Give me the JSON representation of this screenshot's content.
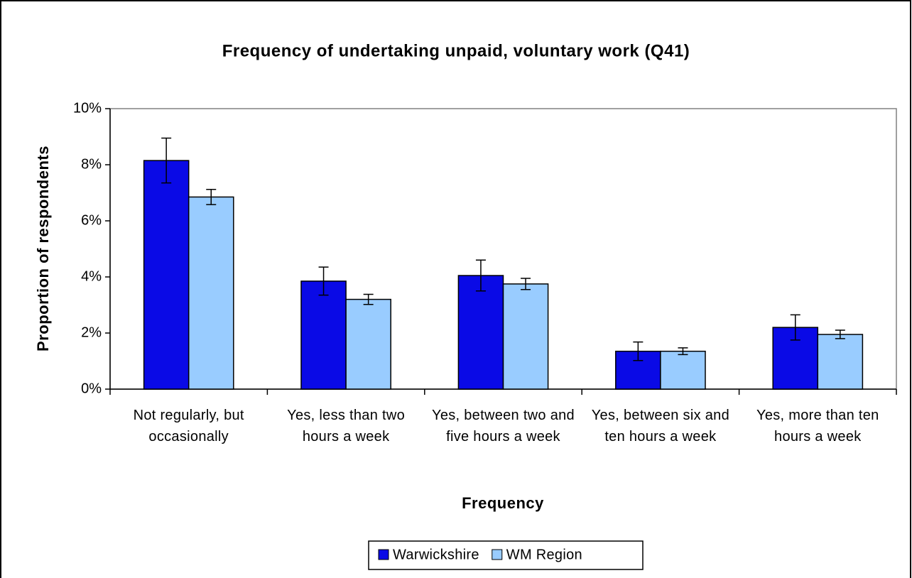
{
  "chart_data": {
    "type": "bar",
    "title": "Frequency of undertaking unpaid, voluntary work (Q41)",
    "x_label": "Frequency",
    "y_label": "Proportion of respondents",
    "categories": [
      "Not regularly, but occasionally",
      "Yes, less than two hours a week",
      "Yes, between two and five hours a week",
      "Yes, between six and ten hours a week",
      "Yes, more than ten hours a week"
    ],
    "series": [
      {
        "name": "Warwickshire",
        "color": "#0a0ae6",
        "values": [
          8.15,
          3.85,
          4.05,
          1.35,
          2.2
        ],
        "errors": [
          0.8,
          0.5,
          0.55,
          0.33,
          0.45
        ]
      },
      {
        "name": "WM Region",
        "color": "#99ccff",
        "values": [
          6.85,
          3.2,
          3.75,
          1.35,
          1.95
        ],
        "errors": [
          0.27,
          0.18,
          0.2,
          0.12,
          0.15
        ]
      }
    ],
    "ylim": [
      0,
      10
    ],
    "yticks": [
      {
        "value": 0,
        "label": "0%"
      },
      {
        "value": 2,
        "label": "2%"
      },
      {
        "value": 4,
        "label": "4%"
      },
      {
        "value": 6,
        "label": "6%"
      },
      {
        "value": 8,
        "label": "8%"
      },
      {
        "value": 10,
        "label": "10%"
      }
    ],
    "legend": "bottom",
    "grid": false
  }
}
